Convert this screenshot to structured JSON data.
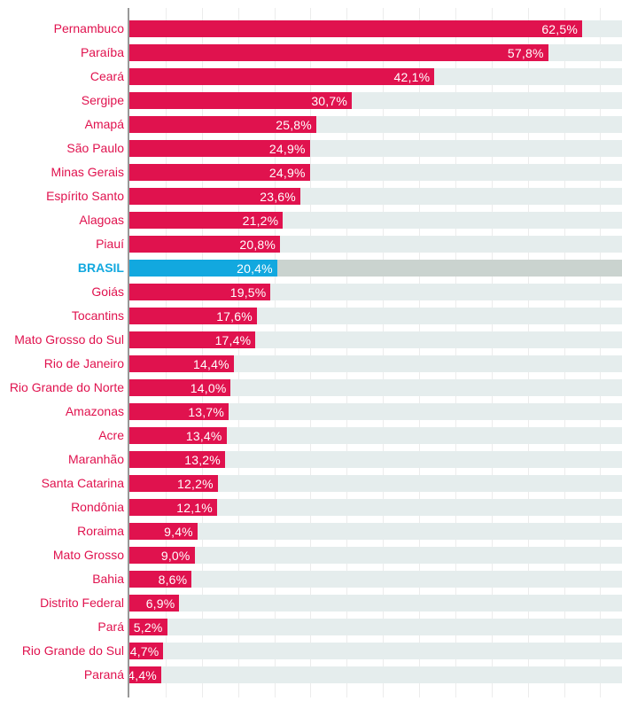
{
  "chart_data": {
    "type": "bar",
    "orientation": "horizontal",
    "title": "",
    "xlabel": "",
    "ylabel": "",
    "unit": "%",
    "decimal_separator": ",",
    "xlim": [
      0,
      68
    ],
    "gridline_step": 5,
    "grid": true,
    "legend": "none",
    "categories": [
      "Pernambuco",
      "Paraíba",
      "Ceará",
      "Sergipe",
      "Amapá",
      "São Paulo",
      "Minas Gerais",
      "Espírito Santo",
      "Alagoas",
      "Piauí",
      "BRASIL",
      "Goiás",
      "Tocantins",
      "Mato Grosso do Sul",
      "Rio de Janeiro",
      "Rio Grande do Norte",
      "Amazonas",
      "Acre",
      "Maranhão",
      "Santa Catarina",
      "Rondônia",
      "Roraima",
      "Mato Grosso",
      "Bahia",
      "Distrito Federal",
      "Pará",
      "Rio Grande do Sul",
      "Paraná"
    ],
    "values": [
      62.5,
      57.8,
      42.1,
      30.7,
      25.8,
      24.9,
      24.9,
      23.6,
      21.2,
      20.8,
      20.4,
      19.5,
      17.6,
      17.4,
      14.4,
      14.0,
      13.7,
      13.4,
      13.2,
      12.2,
      12.1,
      9.4,
      9.0,
      8.6,
      6.9,
      5.2,
      4.7,
      4.4
    ],
    "rows": [
      {
        "label": "Pernambuco",
        "value": 62.5,
        "display": "62,5%",
        "highlight": false
      },
      {
        "label": "Paraíba",
        "value": 57.8,
        "display": "57,8%",
        "highlight": false
      },
      {
        "label": "Ceará",
        "value": 42.1,
        "display": "42,1%",
        "highlight": false
      },
      {
        "label": "Sergipe",
        "value": 30.7,
        "display": "30,7%",
        "highlight": false
      },
      {
        "label": "Amapá",
        "value": 25.8,
        "display": "25,8%",
        "highlight": false
      },
      {
        "label": "São Paulo",
        "value": 24.9,
        "display": "24,9%",
        "highlight": false
      },
      {
        "label": "Minas Gerais",
        "value": 24.9,
        "display": "24,9%",
        "highlight": false
      },
      {
        "label": "Espírito Santo",
        "value": 23.6,
        "display": "23,6%",
        "highlight": false
      },
      {
        "label": "Alagoas",
        "value": 21.2,
        "display": "21,2%",
        "highlight": false
      },
      {
        "label": "Piauí",
        "value": 20.8,
        "display": "20,8%",
        "highlight": false
      },
      {
        "label": "BRASIL",
        "value": 20.4,
        "display": "20,4%",
        "highlight": true
      },
      {
        "label": "Goiás",
        "value": 19.5,
        "display": "19,5%",
        "highlight": false
      },
      {
        "label": "Tocantins",
        "value": 17.6,
        "display": "17,6%",
        "highlight": false
      },
      {
        "label": "Mato Grosso do Sul",
        "value": 17.4,
        "display": "17,4%",
        "highlight": false
      },
      {
        "label": "Rio de Janeiro",
        "value": 14.4,
        "display": "14,4%",
        "highlight": false
      },
      {
        "label": "Rio Grande do Norte",
        "value": 14.0,
        "display": "14,0%",
        "highlight": false
      },
      {
        "label": "Amazonas",
        "value": 13.7,
        "display": "13,7%",
        "highlight": false
      },
      {
        "label": "Acre",
        "value": 13.4,
        "display": "13,4%",
        "highlight": false
      },
      {
        "label": "Maranhão",
        "value": 13.2,
        "display": "13,2%",
        "highlight": false
      },
      {
        "label": "Santa Catarina",
        "value": 12.2,
        "display": "12,2%",
        "highlight": false
      },
      {
        "label": "Rondônia",
        "value": 12.1,
        "display": "12,1%",
        "highlight": false
      },
      {
        "label": "Roraima",
        "value": 9.4,
        "display": "9,4%",
        "highlight": false
      },
      {
        "label": "Mato Grosso",
        "value": 9.0,
        "display": "9,0%",
        "highlight": false
      },
      {
        "label": "Bahia",
        "value": 8.6,
        "display": "8,6%",
        "highlight": false
      },
      {
        "label": "Distrito Federal",
        "value": 6.9,
        "display": "6,9%",
        "highlight": false
      },
      {
        "label": "Pará",
        "value": 5.2,
        "display": "5,2%",
        "highlight": false
      },
      {
        "label": "Rio Grande do Sul",
        "value": 4.7,
        "display": "4,7%",
        "highlight": false
      },
      {
        "label": "Paraná",
        "value": 4.4,
        "display": "4,4%",
        "highlight": false
      }
    ],
    "highlight_category": "BRASIL",
    "colors": {
      "bar": "#e0124e",
      "highlight_bar": "#12a8df",
      "track": "#e5eded",
      "highlight_track": "#cad3cf",
      "category_label": "#e0124e",
      "highlight_label": "#12a8df",
      "value_text": "#ffffff",
      "gridline": "#ececec",
      "axis_line": "#989898",
      "background": "#ffffff"
    }
  }
}
